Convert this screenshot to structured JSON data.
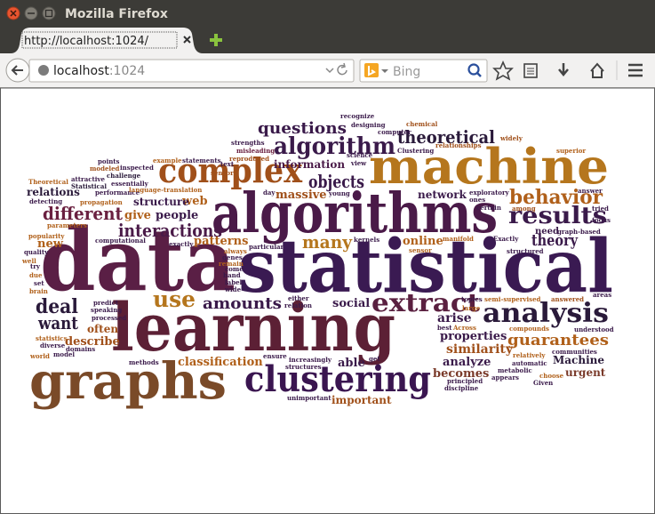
{
  "window": {
    "title": "Mozilla Firefox"
  },
  "tab": {
    "title": "http://localhost:1024/"
  },
  "toolbar": {
    "url_host": "localhost",
    "url_port": ":1024",
    "search_placeholder": "Bing"
  },
  "word_cloud": {
    "words": [
      "data",
      "statistical",
      "learning",
      "algorithms",
      "machine",
      "graphs",
      "clustering",
      "complex",
      "analysis",
      "extract",
      "algorithm",
      "results",
      "behavior",
      "theoretical",
      "questions",
      "different",
      "interactions",
      "objects",
      "deal",
      "want",
      "use",
      "amounts",
      "many",
      "theory",
      "guarantees",
      "similarity",
      "properties",
      "analyze",
      "becomes",
      "arise",
      "social",
      "able",
      "important",
      "classification",
      "describe",
      "often",
      "new",
      "give",
      "people",
      "web",
      "structure",
      "relations",
      "patterns",
      "information",
      "massive",
      "network",
      "online",
      "need",
      "Machine",
      "urgent",
      "compounds",
      "recognize",
      "designing",
      "chemical",
      "computer",
      "widely",
      "strengths",
      "misleading",
      "reproduced",
      "text",
      "Clustering",
      "relationships",
      "superior",
      "points",
      "modeled",
      "inspected",
      "example",
      "statements",
      "Theoretical",
      "attractive",
      "challenge",
      "Statistical",
      "essentially",
      "detecting",
      "propagation",
      "performance",
      "language-translation",
      "sensors",
      "day",
      "young",
      "view",
      "science",
      "exploratory",
      "ones",
      "certain",
      "among",
      "answer",
      "tried",
      "focus",
      "graph-based",
      "manifold",
      "Exactly",
      "structured",
      "kernels",
      "sensor",
      "parameters",
      "popularity",
      "quality",
      "well",
      "try",
      "due",
      "set",
      "brain",
      "computational",
      "exactly",
      "particular",
      "always",
      "genes",
      "remain",
      "come",
      "hand",
      "label",
      "wide",
      "either",
      "relation",
      "topics",
      "semi-supervised",
      "answered",
      "areas",
      "large",
      "best",
      "Across",
      "understood",
      "predict",
      "speaking",
      "processed",
      "statistics",
      "diverse",
      "domains",
      "world",
      "model",
      "methods",
      "ensure",
      "increasingly",
      "structures",
      "get",
      "relatively",
      "automatic",
      "communities",
      "metabolic",
      "choose",
      "principled",
      "appears",
      "Given",
      "discipline",
      "unimportant"
    ]
  }
}
